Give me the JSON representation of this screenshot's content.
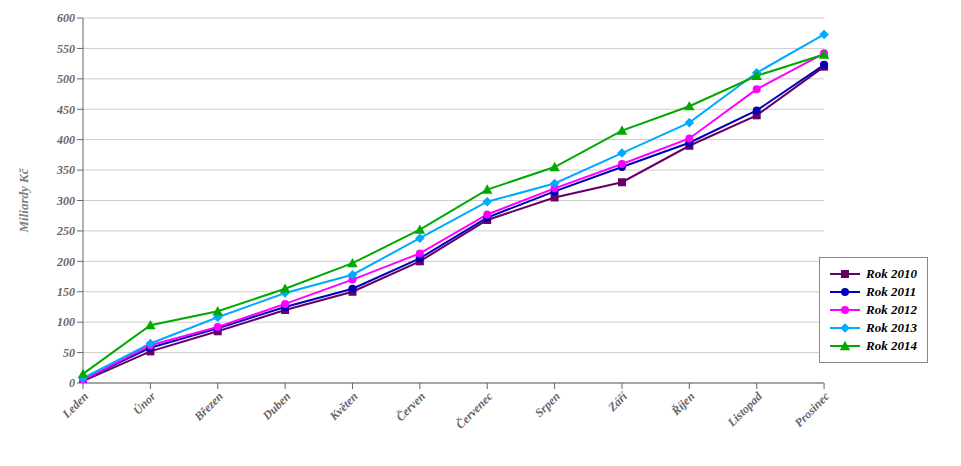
{
  "chart_data": {
    "type": "line",
    "categories": [
      "Leden",
      "Únor",
      "Březen",
      "Duben",
      "Květen",
      "Červen",
      "Červenec",
      "Srpen",
      "Září",
      "Říjen",
      "Listopad",
      "Prosinec"
    ],
    "series": [
      {
        "name": "Rok 2010",
        "color": "#660066",
        "marker": "square",
        "values": [
          3,
          52,
          85,
          120,
          150,
          200,
          268,
          305,
          330,
          390,
          440,
          520
        ]
      },
      {
        "name": "Rok 2011",
        "color": "#0000BB",
        "marker": "circle",
        "values": [
          5,
          58,
          90,
          125,
          155,
          205,
          272,
          315,
          355,
          395,
          448,
          523
        ]
      },
      {
        "name": "Rok 2012",
        "color": "#FF00FF",
        "marker": "circle",
        "values": [
          5,
          62,
          92,
          130,
          170,
          213,
          277,
          320,
          360,
          402,
          483,
          542
        ]
      },
      {
        "name": "Rok 2013",
        "color": "#00AAFF",
        "marker": "diamond",
        "values": [
          8,
          65,
          108,
          148,
          178,
          238,
          298,
          328,
          378,
          428,
          510,
          573
        ]
      },
      {
        "name": "Rok 2014",
        "color": "#00AA00",
        "marker": "triangle",
        "values": [
          15,
          95,
          118,
          155,
          197,
          252,
          318,
          355,
          415,
          455,
          505,
          540
        ]
      }
    ],
    "ylabel": "Miliardy Kč",
    "ylim": [
      0,
      600
    ],
    "yticks": [
      0,
      50,
      100,
      150,
      200,
      250,
      300,
      350,
      400,
      450,
      500,
      550,
      600
    ],
    "grid": true,
    "legend": "lower right"
  }
}
